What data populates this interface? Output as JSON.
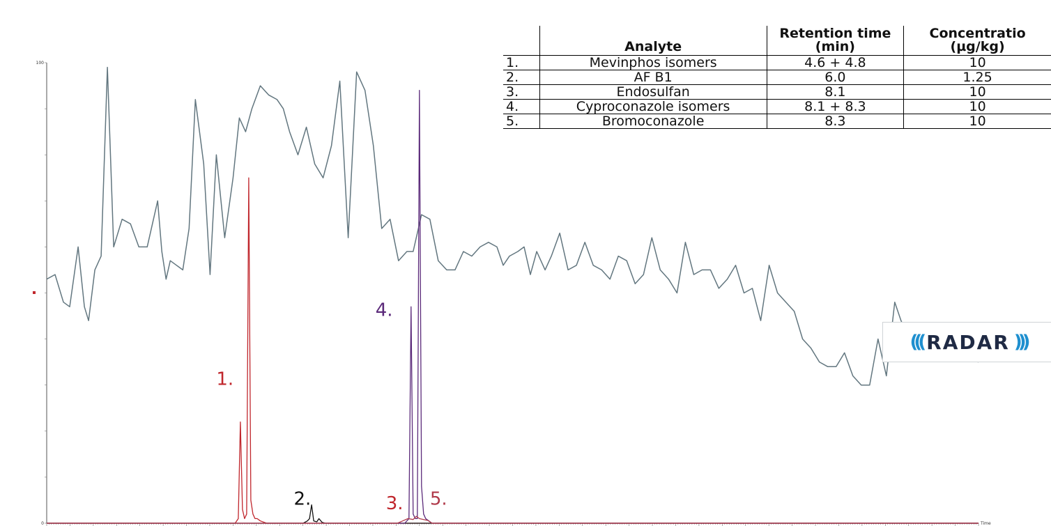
{
  "chart_data": {
    "type": "line",
    "ylim": [
      0,
      100
    ],
    "yticks": [
      "0",
      "100"
    ],
    "xlabel": "Time",
    "series": [
      {
        "color": "#62767f",
        "x": [
          0,
          0.8,
          1.6,
          2.2,
          3.0,
          3.6,
          4.0,
          4.6,
          5.2,
          5.8,
          6.4,
          7.2,
          8.0,
          8.8,
          9.6,
          10.6,
          11.0,
          11.4,
          11.8,
          12.4,
          13.0,
          13.6,
          14.2,
          15.0,
          15.6,
          16.2,
          17.0,
          17.8,
          18.4,
          19.0,
          19.6,
          20.4,
          21.2,
          22.0,
          22.6,
          23.2,
          24.0,
          24.8,
          25.6,
          26.4,
          27.2,
          28.0,
          28.8,
          29.6,
          30.4,
          31.2,
          32.0,
          32.8,
          33.6,
          34.4,
          35.0,
          35.8,
          36.6,
          37.4,
          38.2,
          39.0,
          39.8,
          40.6,
          41.4,
          42.2,
          43.0,
          43.6,
          44.2,
          45.0,
          45.6,
          46.2,
          46.8,
          47.6,
          48.2,
          49.0,
          49.8,
          50.6,
          51.4,
          52.2,
          53.0,
          53.8,
          54.6,
          55.4,
          56.2,
          57.0,
          57.8,
          58.6,
          59.4,
          60.2,
          61.0,
          61.8,
          62.6,
          63.4,
          64.2,
          65.0,
          65.8,
          66.6,
          67.4,
          68.2,
          69.0,
          69.8,
          70.6,
          71.4,
          72.2,
          73.0,
          73.8,
          74.6,
          75.4,
          76.2,
          77.0,
          77.8,
          78.6,
          79.4,
          80.2,
          81.0,
          81.6,
          82.0,
          82.4,
          82.8,
          83.4,
          84.0,
          84.6,
          85.2,
          85.8,
          86.6,
          87.4,
          88.2,
          89.0
        ],
        "y": [
          53,
          54,
          48,
          47,
          60,
          47,
          44,
          55,
          58,
          99,
          60,
          66,
          65,
          60,
          60,
          70,
          59,
          53,
          57,
          56,
          55,
          64,
          92,
          78,
          54,
          80,
          62,
          75,
          88,
          85,
          90,
          95,
          93,
          92,
          90,
          85,
          80,
          86,
          78,
          75,
          82,
          96,
          62,
          98,
          94,
          82,
          64,
          66,
          57,
          59,
          59,
          67,
          66,
          57,
          55,
          55,
          59,
          58,
          60,
          61,
          60,
          56,
          58,
          59,
          60,
          54,
          59,
          55,
          58,
          63,
          55,
          56,
          61,
          56,
          55,
          53,
          58,
          57,
          52,
          54,
          62,
          55,
          53,
          50,
          61,
          54,
          55,
          55,
          51,
          53,
          56,
          50,
          51,
          44,
          56,
          50,
          48,
          46,
          40,
          38,
          35,
          34,
          34,
          37,
          32,
          30,
          30,
          40,
          32,
          48,
          44,
          42,
          37,
          37,
          37,
          36,
          36,
          36,
          36,
          35.5,
          35.5,
          35.5,
          35
        ]
      },
      {
        "color": "#c0262c",
        "x": [
          0,
          18.0,
          18.3,
          18.5,
          18.7,
          18.9,
          19.1,
          19.3,
          19.5,
          19.7,
          19.9,
          20.1,
          20.4,
          21.0,
          89.0
        ],
        "y": [
          0,
          0,
          1,
          22,
          3,
          1,
          2,
          75,
          5,
          2,
          1,
          1,
          0.5,
          0,
          0
        ]
      },
      {
        "color": "#111111",
        "x": [
          0,
          24.5,
          24.9,
          25.1,
          25.3,
          25.5,
          25.8,
          26.0,
          26.3,
          26.6,
          89.0
        ],
        "y": [
          0,
          0,
          0.5,
          1,
          4,
          0.5,
          0.3,
          1,
          0.2,
          0,
          0
        ]
      },
      {
        "color": "#5b2a7a",
        "x": [
          0,
          34.2,
          34.6,
          34.8,
          35.0,
          35.2,
          35.4,
          35.6,
          35.8,
          36.0,
          36.2,
          36.5,
          36.8,
          89.0
        ],
        "y": [
          0,
          0,
          1,
          47,
          2,
          1,
          1,
          94,
          8,
          2,
          1,
          0.5,
          0,
          0
        ]
      },
      {
        "color": "#b03a4a",
        "x": [
          0,
          33.5,
          34.0,
          34.5,
          35.0,
          35.3,
          35.6,
          36.0,
          36.4,
          36.8,
          89.0
        ],
        "y": [
          0,
          0,
          0.5,
          1,
          0.8,
          1.5,
          1,
          0.8,
          0.6,
          0,
          0
        ]
      }
    ],
    "annotations": [
      {
        "text": "1.",
        "x": 16.2,
        "y": 30,
        "color": "#c0262c"
      },
      {
        "text": "2.",
        "x": 23.6,
        "y": 4,
        "color": "#111111"
      },
      {
        "text": "3.",
        "x": 32.4,
        "y": 3,
        "color": "#c0262c"
      },
      {
        "text": "4.",
        "x": 31.4,
        "y": 45,
        "color": "#5b2a7a"
      },
      {
        "text": "5.",
        "x": 36.6,
        "y": 4,
        "color": "#b03a4a"
      }
    ],
    "table": {
      "header": [
        "",
        "Analyte",
        "Retention time (min)",
        "Concentratio (µg/kg)"
      ],
      "rows": [
        [
          "1.",
          "Mevinphos isomers",
          "4.6 + 4.8",
          "10"
        ],
        [
          "2.",
          "AF B1",
          "6.0",
          "1.25"
        ],
        [
          "3.",
          "Endosulfan",
          "8.1",
          "10"
        ],
        [
          "4.",
          "Cyproconazole isomers",
          "8.1 + 8.3",
          "10"
        ],
        [
          "5.",
          "Bromoconazole",
          "8.3",
          "10"
        ]
      ]
    }
  },
  "logo_text": "RADAR"
}
